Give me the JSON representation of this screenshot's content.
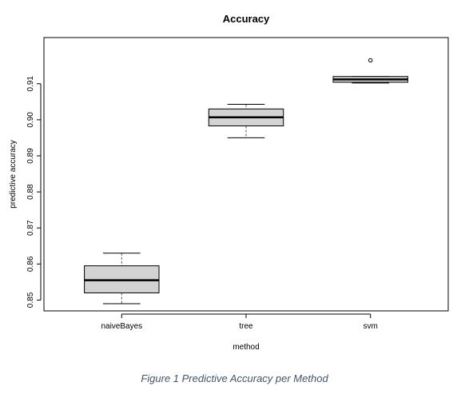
{
  "chart_data": {
    "type": "box",
    "title": "Accuracy",
    "xlabel": "method",
    "ylabel": "predictive accuracy",
    "categories": [
      "naiveBayes",
      "tree",
      "svm"
    ],
    "boxes": [
      {
        "whisker_low": 0.849,
        "q1": 0.852,
        "median": 0.8555,
        "q3": 0.8595,
        "whisker_high": 0.863,
        "outliers": []
      },
      {
        "whisker_low": 0.895,
        "q1": 0.8983,
        "median": 0.9007,
        "q3": 0.903,
        "whisker_high": 0.9043,
        "outliers": []
      },
      {
        "whisker_low": 0.9102,
        "q1": 0.9104,
        "median": 0.9112,
        "q3": 0.912,
        "whisker_high": 0.912,
        "outliers": [
          0.9165
        ]
      }
    ],
    "ylim": [
      0.847,
      0.9228
    ],
    "yticks": [
      0.85,
      0.86,
      0.87,
      0.88,
      0.89,
      0.9,
      0.91
    ],
    "ytick_labels": [
      "0.85",
      "0.86",
      "0.87",
      "0.88",
      "0.89",
      "0.90",
      "0.91"
    ],
    "box_fill": "#d3d3d3",
    "grid": false,
    "legend": "none"
  },
  "caption": "Figure 1 Predictive Accuracy per Method"
}
